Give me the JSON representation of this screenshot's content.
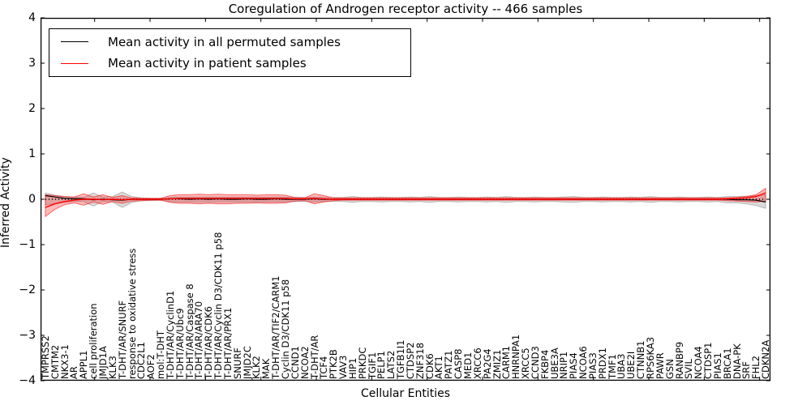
{
  "title": "Coregulation of Androgen receptor activity -- 466 samples",
  "axes": {
    "ylabel": "Inferred Activity",
    "xlabel": "Cellular Entities",
    "y_ticks": [
      "4",
      "3",
      "2",
      "1",
      "0",
      "−1",
      "−2",
      "−3",
      "−4"
    ],
    "ylim": [
      -4,
      4
    ]
  },
  "legend": {
    "entries": [
      {
        "label": "Mean activity in all permuted samples",
        "color": "#000000"
      },
      {
        "label": "Mean activity in patient samples",
        "color": "#ff0000"
      }
    ]
  },
  "colors": {
    "permuted_line": "#000000",
    "patient_line": "#ff0000",
    "permuted_band_fill": "rgba(150,150,150,0.35)",
    "permuted_band_edge": "rgba(120,120,120,0.45)",
    "patient_band_fill": "rgba(255,0,0,0.27)",
    "patient_band_edge": "rgba(255,0,0,0.55)"
  },
  "chart_data": {
    "type": "line",
    "title": "Coregulation of Androgen receptor activity -- 466 samples",
    "xlabel": "Cellular Entities",
    "ylabel": "Inferred Activity",
    "ylim": [
      -4,
      4
    ],
    "grid": false,
    "legend_position": "upper left",
    "zero_line": true,
    "categories": [
      "TMPRSS2",
      "CMTM2",
      "NKX3-1",
      "AR",
      "APPL1",
      "cell proliferation",
      "JMJD1A",
      "KLK3",
      "T-DHT/AR/SNURF",
      "response to oxidative stress",
      "CDC2L1",
      "AOF2",
      "mol:T-DHT",
      "T-DHT/AR/CyclinD1",
      "T-DHT/AR/Ubc9",
      "T-DHT/AR/Caspase 8",
      "T-DHT/AR/ARA70",
      "T-DHT/AR/CDK6",
      "T-DHT/AR/Cyclin D3/CDK11 p58",
      "T-DHT/AR/PRX1",
      "SNURF",
      "JMJD2C",
      "KLK2",
      "MAK",
      "T-DHT/AR/TIF2/CARM1",
      "Cyclin D3/CDK11 p58",
      "CCND1",
      "NCOA2",
      "T-DHT/AR",
      "TCF4",
      "PTK2B",
      "VAV3",
      "HIP1",
      "PRKDC",
      "TGIF1",
      "PELP1",
      "LATS2",
      "TGFB1I1",
      "CTDSP2",
      "ZNF318",
      "CDK6",
      "AKT1",
      "PATZ1",
      "CASP8",
      "MED1",
      "XRCC6",
      "PA2G4",
      "ZMIZ1",
      "CARM1",
      "HNRNPA1",
      "XRCC5",
      "CCND3",
      "FKBP4",
      "UBE3A",
      "NRIP1",
      "PIAS4",
      "NCOA6",
      "PIAS3",
      "PRDX1",
      "TMF1",
      "UBA3",
      "UBE2I",
      "CTNNB1",
      "RPS6KA3",
      "PAWR",
      "GSN",
      "RANBP9",
      "SVIL",
      "NCOA4",
      "CTDSP1",
      "PIAS1",
      "BRCA1",
      "DNA-PK",
      "SRF",
      "FHL2",
      "CDKN2A"
    ],
    "series": [
      {
        "name": "Mean activity in all permuted samples",
        "color": "#000000",
        "values": [
          0.08,
          0.05,
          0.02,
          0.01,
          0.01,
          -0.01,
          0.0,
          -0.01,
          -0.02,
          0.0,
          0.0,
          0.0,
          0.0,
          0.01,
          0.01,
          0.0,
          0.01,
          0.0,
          0.01,
          0.0,
          0.0,
          0.01,
          0.0,
          0.0,
          0.01,
          0.0,
          0.0,
          0.0,
          0.01,
          0.0,
          0.0,
          0.0,
          0.0,
          0.0,
          0.0,
          0.0,
          0.0,
          0.0,
          0.0,
          0.0,
          0.0,
          0.0,
          0.0,
          0.0,
          0.0,
          0.0,
          0.0,
          0.0,
          0.0,
          0.0,
          0.0,
          0.0,
          0.0,
          0.0,
          0.0,
          0.0,
          0.0,
          0.0,
          0.0,
          0.0,
          0.0,
          0.0,
          0.0,
          0.0,
          0.0,
          0.0,
          0.0,
          0.0,
          0.0,
          0.0,
          0.0,
          0.0,
          -0.01,
          -0.01,
          -0.02,
          -0.06
        ]
      },
      {
        "name": "Mean activity in patient samples",
        "color": "#ff0000",
        "values": [
          -0.18,
          -0.1,
          -0.05,
          -0.02,
          0.0,
          0.0,
          -0.01,
          0.0,
          -0.01,
          0.0,
          0.0,
          0.0,
          0.0,
          0.01,
          0.02,
          0.02,
          0.02,
          0.02,
          0.02,
          0.02,
          0.02,
          0.02,
          0.02,
          0.02,
          0.02,
          0.02,
          0.01,
          0.01,
          0.02,
          0.01,
          0.0,
          0.0,
          0.0,
          0.0,
          0.0,
          0.0,
          0.0,
          0.0,
          0.0,
          0.0,
          0.0,
          0.0,
          0.0,
          0.0,
          0.0,
          0.0,
          0.0,
          0.0,
          0.0,
          0.0,
          0.0,
          0.0,
          0.0,
          0.0,
          0.0,
          0.0,
          0.0,
          0.0,
          0.0,
          0.0,
          0.0,
          0.0,
          0.0,
          0.0,
          0.0,
          0.0,
          0.0,
          0.0,
          0.0,
          0.0,
          0.0,
          0.01,
          0.02,
          0.03,
          0.06,
          0.14
        ]
      }
    ],
    "bands": [
      {
        "name": "permuted range",
        "upper": [
          0.14,
          0.09,
          0.06,
          0.05,
          0.04,
          0.14,
          0.05,
          0.06,
          0.16,
          0.06,
          0.03,
          0.02,
          0.02,
          0.04,
          0.05,
          0.05,
          0.05,
          0.05,
          0.05,
          0.05,
          0.05,
          0.05,
          0.05,
          0.05,
          0.05,
          0.05,
          0.04,
          0.04,
          0.05,
          0.04,
          0.04,
          0.04,
          0.06,
          0.04,
          0.04,
          0.05,
          0.04,
          0.04,
          0.05,
          0.04,
          0.06,
          0.04,
          0.04,
          0.05,
          0.04,
          0.04,
          0.05,
          0.04,
          0.06,
          0.04,
          0.04,
          0.05,
          0.04,
          0.04,
          0.05,
          0.06,
          0.04,
          0.04,
          0.05,
          0.04,
          0.04,
          0.05,
          0.04,
          0.06,
          0.04,
          0.04,
          0.05,
          0.04,
          0.04,
          0.05,
          0.04,
          0.06,
          0.06,
          0.07,
          0.08,
          0.1
        ],
        "lower": [
          -0.12,
          -0.1,
          -0.07,
          -0.05,
          -0.05,
          -0.15,
          -0.05,
          -0.06,
          -0.18,
          -0.07,
          -0.03,
          -0.03,
          -0.02,
          -0.05,
          -0.06,
          -0.06,
          -0.06,
          -0.06,
          -0.06,
          -0.06,
          -0.06,
          -0.06,
          -0.06,
          -0.06,
          -0.06,
          -0.06,
          -0.05,
          -0.05,
          -0.06,
          -0.05,
          -0.05,
          -0.05,
          -0.07,
          -0.05,
          -0.05,
          -0.06,
          -0.05,
          -0.05,
          -0.06,
          -0.05,
          -0.07,
          -0.05,
          -0.05,
          -0.06,
          -0.05,
          -0.05,
          -0.06,
          -0.05,
          -0.07,
          -0.05,
          -0.05,
          -0.06,
          -0.05,
          -0.05,
          -0.06,
          -0.07,
          -0.05,
          -0.05,
          -0.06,
          -0.05,
          -0.05,
          -0.06,
          -0.05,
          -0.07,
          -0.05,
          -0.05,
          -0.06,
          -0.05,
          -0.05,
          -0.06,
          -0.05,
          -0.08,
          -0.08,
          -0.1,
          -0.14,
          -0.2
        ]
      },
      {
        "name": "patient range",
        "upper": [
          0.1,
          0.08,
          0.06,
          0.05,
          0.12,
          0.05,
          0.1,
          0.04,
          0.08,
          0.03,
          0.02,
          0.02,
          0.02,
          0.08,
          0.1,
          0.1,
          0.11,
          0.1,
          0.11,
          0.1,
          0.1,
          0.1,
          0.09,
          0.1,
          0.1,
          0.09,
          0.04,
          0.03,
          0.12,
          0.08,
          0.03,
          0.03,
          0.03,
          0.03,
          0.03,
          0.03,
          0.03,
          0.03,
          0.03,
          0.03,
          0.03,
          0.03,
          0.03,
          0.03,
          0.03,
          0.03,
          0.03,
          0.03,
          0.03,
          0.03,
          0.03,
          0.03,
          0.03,
          0.03,
          0.03,
          0.03,
          0.03,
          0.03,
          0.03,
          0.03,
          0.03,
          0.03,
          0.03,
          0.03,
          0.03,
          0.03,
          0.03,
          0.03,
          0.03,
          0.03,
          0.03,
          0.03,
          0.04,
          0.06,
          0.1,
          0.24
        ],
        "lower": [
          -0.38,
          -0.22,
          -0.12,
          -0.08,
          -0.13,
          -0.06,
          -0.11,
          -0.05,
          -0.09,
          -0.04,
          -0.03,
          -0.02,
          -0.02,
          -0.07,
          -0.09,
          -0.09,
          -0.1,
          -0.09,
          -0.1,
          -0.1,
          -0.09,
          -0.09,
          -0.08,
          -0.09,
          -0.09,
          -0.08,
          -0.04,
          -0.03,
          -0.1,
          -0.06,
          -0.03,
          -0.02,
          -0.02,
          -0.02,
          -0.02,
          -0.02,
          -0.02,
          -0.02,
          -0.02,
          -0.02,
          -0.02,
          -0.02,
          -0.02,
          -0.02,
          -0.02,
          -0.02,
          -0.02,
          -0.02,
          -0.02,
          -0.02,
          -0.02,
          -0.02,
          -0.02,
          -0.02,
          -0.02,
          -0.02,
          -0.02,
          -0.02,
          -0.02,
          -0.02,
          -0.02,
          -0.02,
          -0.02,
          -0.02,
          -0.02,
          -0.02,
          -0.02,
          -0.02,
          -0.02,
          -0.02,
          -0.02,
          -0.03,
          -0.04,
          -0.05,
          -0.06,
          -0.04
        ]
      }
    ]
  }
}
